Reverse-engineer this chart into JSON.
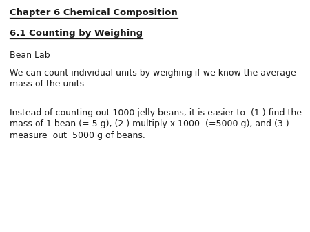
{
  "background_color": "#ffffff",
  "title_line1": "Chapter 6 Chemical Composition",
  "title_line2": "6.1 Counting by Weighing",
  "line3": "Bean Lab",
  "para1": "We can count individual units by weighing if we know the average\nmass of the units.",
  "para2": "Instead of counting out 1000 jelly beans, it is easier to  (1.) find the\nmass of 1 bean (= 5 g), (2.) multiply x 1000  (=5000 g), and (3.)\nmeasure  out  5000 g of beans.",
  "text_color": "#1a1a1a",
  "font_size_title": 9.5,
  "font_size_body": 9.0,
  "fig_width": 4.5,
  "fig_height": 3.38,
  "dpi": 100
}
